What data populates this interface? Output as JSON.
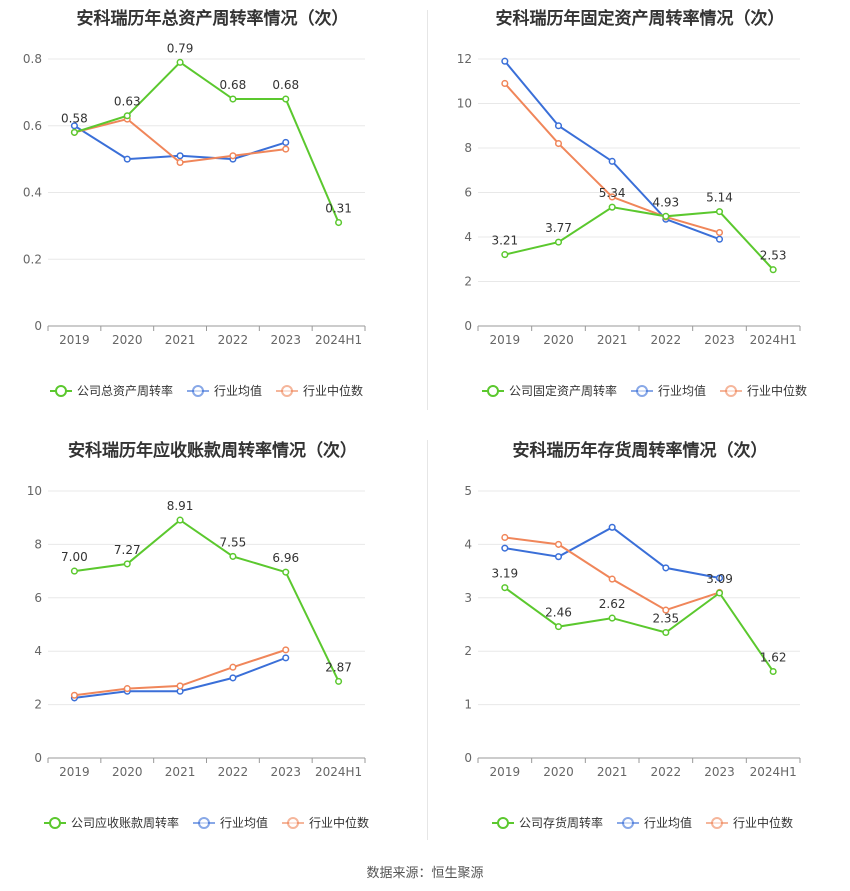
{
  "source": "数据来源：恒生聚源",
  "colors": {
    "company": "#5bc82e",
    "industry_avg": "#3a6fd8",
    "industry_median": "#f0865a",
    "grid": "#e8e8e8",
    "axis": "#999999",
    "text": "#666666"
  },
  "chart_data": [
    {
      "type": "line",
      "title": "安科瑞历年总资产周转率情况（次）",
      "categories": [
        "2019",
        "2020",
        "2021",
        "2022",
        "2023",
        "2024H1"
      ],
      "ylim": [
        0,
        0.8
      ],
      "yticks": [
        "0",
        "0.2",
        "0.4",
        "0.6",
        "0.8"
      ],
      "series": [
        {
          "name": "公司总资产周转率",
          "key": "company",
          "values": [
            0.58,
            0.63,
            0.79,
            0.68,
            0.68,
            0.31
          ],
          "labels": [
            "0.58",
            "0.63",
            "0.79",
            "0.68",
            "0.68",
            "0.31"
          ]
        },
        {
          "name": "行业均值",
          "key": "industry_avg",
          "values": [
            0.6,
            0.5,
            0.51,
            0.5,
            0.55,
            null
          ]
        },
        {
          "name": "行业中位数",
          "key": "industry_median",
          "values": [
            0.58,
            0.62,
            0.49,
            0.51,
            0.53,
            null
          ]
        }
      ]
    },
    {
      "type": "line",
      "title": "安科瑞历年固定资产周转率情况（次）",
      "categories": [
        "2019",
        "2020",
        "2021",
        "2022",
        "2023",
        "2024H1"
      ],
      "ylim": [
        0,
        12
      ],
      "yticks": [
        "0",
        "2",
        "4",
        "6",
        "8",
        "10",
        "12"
      ],
      "series": [
        {
          "name": "公司固定资产周转率",
          "key": "company",
          "values": [
            3.21,
            3.77,
            5.34,
            4.93,
            5.14,
            2.53
          ],
          "labels": [
            "3.21",
            "3.77",
            "5.34",
            "4.93",
            "5.14",
            "2.53"
          ]
        },
        {
          "name": "行业均值",
          "key": "industry_avg",
          "values": [
            11.9,
            9.0,
            7.4,
            4.8,
            3.9,
            null
          ]
        },
        {
          "name": "行业中位数",
          "key": "industry_median",
          "values": [
            10.9,
            8.2,
            5.8,
            4.9,
            4.2,
            null
          ]
        }
      ]
    },
    {
      "type": "line",
      "title": "安科瑞历年应收账款周转率情况（次）",
      "categories": [
        "2019",
        "2020",
        "2021",
        "2022",
        "2023",
        "2024H1"
      ],
      "ylim": [
        0,
        10
      ],
      "yticks": [
        "0",
        "2",
        "4",
        "6",
        "8",
        "10"
      ],
      "series": [
        {
          "name": "公司应收账款周转率",
          "key": "company",
          "values": [
            7.0,
            7.27,
            8.91,
            7.55,
            6.96,
            2.87
          ],
          "labels": [
            "7.00",
            "7.27",
            "8.91",
            "7.55",
            "6.96",
            "2.87"
          ]
        },
        {
          "name": "行业均值",
          "key": "industry_avg",
          "values": [
            2.25,
            2.5,
            2.5,
            3.0,
            3.75,
            null
          ]
        },
        {
          "name": "行业中位数",
          "key": "industry_median",
          "values": [
            2.35,
            2.6,
            2.7,
            3.4,
            4.05,
            null
          ]
        }
      ]
    },
    {
      "type": "line",
      "title": "安科瑞历年存货周转率情况（次）",
      "categories": [
        "2019",
        "2020",
        "2021",
        "2022",
        "2023",
        "2024H1"
      ],
      "ylim": [
        0,
        5
      ],
      "yticks": [
        "0",
        "1",
        "2",
        "3",
        "4",
        "5"
      ],
      "series": [
        {
          "name": "公司存货周转率",
          "key": "company",
          "values": [
            3.19,
            2.46,
            2.62,
            2.35,
            3.09,
            1.62
          ],
          "labels": [
            "3.19",
            "2.46",
            "2.62",
            "2.35",
            "3.09",
            "1.62"
          ]
        },
        {
          "name": "行业均值",
          "key": "industry_avg",
          "values": [
            3.93,
            3.77,
            4.32,
            3.56,
            3.37,
            null
          ]
        },
        {
          "name": "行业中位数",
          "key": "industry_median",
          "values": [
            4.13,
            4.0,
            3.35,
            2.77,
            3.1,
            null
          ]
        }
      ]
    }
  ]
}
